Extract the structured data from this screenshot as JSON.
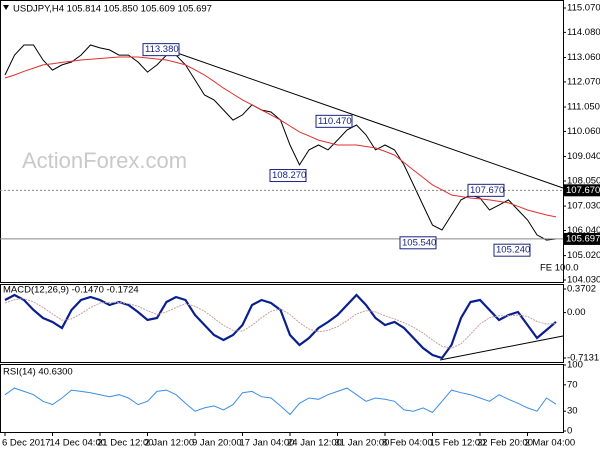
{
  "chart_data": [
    {
      "type": "line",
      "title": "USDJPY,H4 105.814 105.850 105.609 105.697",
      "watermark": "ActionForex.com",
      "fe_label": "FE 100.0",
      "categories": [
        "6 Dec 2017",
        null,
        null,
        null,
        null,
        "14 Dec 04:00",
        null,
        null,
        null,
        null,
        "21 Dec 12:00",
        null,
        null,
        null,
        null,
        "2 Jan 12:00",
        null,
        null,
        null,
        null,
        "9 Jan 20:00",
        null,
        null,
        null,
        null,
        "17 Jan 04:00",
        null,
        null,
        null,
        null,
        "24 Jan 12:00",
        null,
        null,
        null,
        null,
        "31 Jan 20:00",
        null,
        null,
        null,
        null,
        "8 Feb 04:00",
        null,
        null,
        null,
        null,
        "15 Feb 12:00",
        null,
        null,
        null,
        null,
        "22 Feb 20:00",
        null,
        null,
        null,
        null,
        "2 Mar 04:00",
        null,
        null,
        null
      ],
      "series": [
        {
          "color": "#000000",
          "values": [
            112.35,
            113.16,
            113.57,
            113.57,
            112.96,
            112.55,
            112.76,
            112.88,
            113.16,
            113.57,
            113.45,
            113.37,
            113.16,
            113.16,
            112.88,
            112.47,
            112.76,
            113.16,
            113.16,
            112.76,
            112.15,
            111.54,
            111.34,
            110.93,
            110.52,
            110.73,
            111.14,
            110.93,
            110.85,
            110.52,
            109.51,
            108.7,
            109.31,
            109.51,
            109.31,
            109.71,
            110.12,
            110.32,
            109.92,
            109.31,
            109.51,
            109.31,
            108.7,
            107.89,
            107.07,
            106.26,
            106.06,
            106.67,
            107.28,
            107.48,
            107.36,
            106.87,
            107.07,
            107.28,
            106.87,
            106.47,
            105.86,
            105.65,
            105.697
          ]
        },
        {
          "color": "#e03030",
          "values": [
            112.23,
            112.35,
            112.5,
            112.63,
            112.76,
            112.81,
            112.86,
            112.91,
            112.96,
            112.99,
            113.02,
            113.05,
            113.08,
            113.08,
            113.08,
            113.04,
            113.0,
            112.96,
            112.86,
            112.76,
            112.56,
            112.35,
            112.09,
            111.82,
            111.58,
            111.34,
            111.14,
            110.93,
            110.73,
            110.52,
            110.28,
            110.04,
            109.88,
            109.71,
            109.61,
            109.51,
            109.51,
            109.51,
            109.45,
            109.39,
            109.25,
            109.1,
            108.8,
            108.49,
            108.19,
            107.89,
            107.69,
            107.48,
            107.42,
            107.36,
            107.32,
            107.28,
            107.22,
            107.16,
            107.02,
            106.87,
            106.77,
            106.67,
            106.59
          ]
        }
      ],
      "ylim": [
        104.03,
        115.07
      ],
      "yticks": [
        {
          "value": 115.07,
          "label": "115.070"
        },
        {
          "value": 114.08,
          "label": "114.080"
        },
        {
          "value": 113.06,
          "label": "113.060"
        },
        {
          "value": 112.07,
          "label": "112.070"
        },
        {
          "value": 111.05,
          "label": "111.050"
        },
        {
          "value": 110.06,
          "label": "110.060"
        },
        {
          "value": 109.04,
          "label": "109.040"
        },
        {
          "value": 108.05,
          "label": "108.050"
        },
        {
          "value": 107.03,
          "label": "107.030"
        },
        {
          "value": 106.04,
          "label": "106.040"
        },
        {
          "value": 105.02,
          "label": "105.020"
        },
        {
          "value": 104.03,
          "label": "104.030"
        }
      ],
      "levels": [
        {
          "value": 107.67,
          "label": "107.670",
          "style": "dotted"
        },
        {
          "value": 105.697,
          "label": "105.697",
          "style": "solid"
        }
      ],
      "annotations": [
        {
          "value": 113.38,
          "label": "113.380"
        },
        {
          "value": 110.47,
          "label": "110.470"
        },
        {
          "value": 108.27,
          "label": "108.270"
        },
        {
          "value": 105.54,
          "label": "105.540"
        },
        {
          "value": 107.67,
          "label": "107.670"
        },
        {
          "value": 105.24,
          "label": "105.240"
        }
      ]
    },
    {
      "type": "line",
      "title": "MACD(12,26,9) -0.1470 -0.1724",
      "series": [
        {
          "color": "#0a1f8f",
          "values": [
            0.198,
            0.276,
            0.198,
            0.041,
            -0.085,
            -0.148,
            -0.242,
            0.041,
            0.198,
            0.245,
            0.198,
            0.119,
            0.166,
            0.119,
            0.009,
            -0.117,
            -0.085,
            0.166,
            0.245,
            0.198,
            -0.038,
            -0.195,
            -0.352,
            -0.431,
            -0.352,
            -0.195,
            0.119,
            0.198,
            0.15,
            0.041,
            -0.352,
            -0.509,
            -0.399,
            -0.242,
            -0.148,
            -0.038,
            0.119,
            0.276,
            0.119,
            -0.085,
            -0.195,
            -0.148,
            -0.242,
            -0.399,
            -0.556,
            -0.666,
            -0.713,
            -0.509,
            -0.085,
            0.166,
            0.198,
            0.041,
            -0.117,
            -0.038,
            0.009,
            -0.195,
            -0.399,
            -0.273,
            -0.147
          ]
        },
        {
          "color": "#c8a0a0",
          "values": [
            0.15,
            0.2,
            0.22,
            0.17,
            0.08,
            -0.02,
            -0.12,
            -0.1,
            -0.02,
            0.08,
            0.15,
            0.16,
            0.16,
            0.14,
            0.1,
            0.03,
            -0.03,
            0.01,
            0.08,
            0.14,
            0.1,
            0.02,
            -0.09,
            -0.2,
            -0.28,
            -0.29,
            -0.2,
            -0.08,
            0.02,
            0.06,
            -0.03,
            -0.16,
            -0.26,
            -0.3,
            -0.28,
            -0.22,
            -0.13,
            -0.02,
            0.03,
            0.01,
            -0.05,
            -0.1,
            -0.16,
            -0.23,
            -0.32,
            -0.43,
            -0.53,
            -0.56,
            -0.49,
            -0.34,
            -0.18,
            -0.08,
            -0.05,
            -0.05,
            -0.04,
            -0.06,
            -0.14,
            -0.18,
            -0.1724
          ]
        }
      ],
      "ylim": [
        -0.7131,
        0.3702
      ],
      "yticks": [
        0.3702,
        {
          "value": 0,
          "label": "0.00"
        },
        -0.7131
      ]
    },
    {
      "type": "line",
      "title": "RSI(14) 40.6300",
      "series": [
        {
          "color": "#3a8ee6",
          "values": [
            55,
            65,
            60,
            55,
            45,
            40,
            50,
            62,
            60,
            58,
            55,
            52,
            55,
            50,
            40,
            45,
            60,
            62,
            55,
            42,
            30,
            35,
            38,
            32,
            40,
            58,
            60,
            52,
            50,
            38,
            25,
            42,
            50,
            48,
            55,
            60,
            65,
            55,
            45,
            50,
            48,
            45,
            32,
            30,
            35,
            28,
            45,
            62,
            58,
            55,
            50,
            45,
            55,
            48,
            42,
            35,
            30,
            50,
            40.63
          ]
        }
      ],
      "ylim": [
        0,
        100
      ],
      "yticks": [
        100,
        70,
        30,
        0
      ]
    }
  ]
}
